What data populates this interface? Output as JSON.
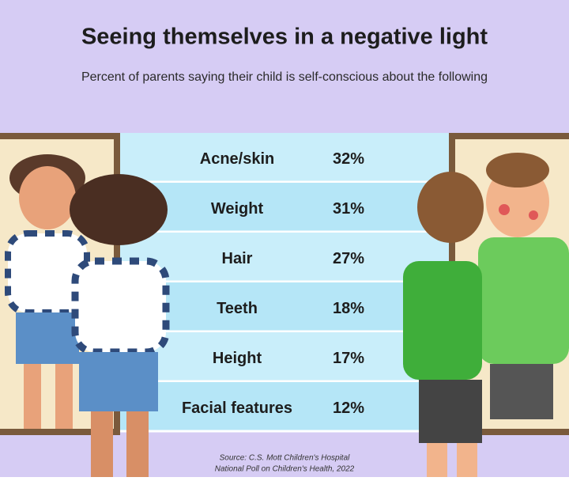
{
  "header": {
    "title": "Seeing themselves in a negative light",
    "subtitle": "Percent of parents saying their child is self-conscious about the following"
  },
  "table": {
    "rows": [
      [
        "Acne/skin",
        "32%"
      ],
      [
        "Weight",
        "31%"
      ],
      [
        "Hair",
        "27%"
      ],
      [
        "Teeth",
        "18%"
      ],
      [
        "Height",
        "17%"
      ],
      [
        "Facial features",
        "12%"
      ]
    ]
  },
  "source": [
    "Source: C.S. Mott Children's Hospital",
    "National Poll on Children's Health, 2022"
  ]
}
